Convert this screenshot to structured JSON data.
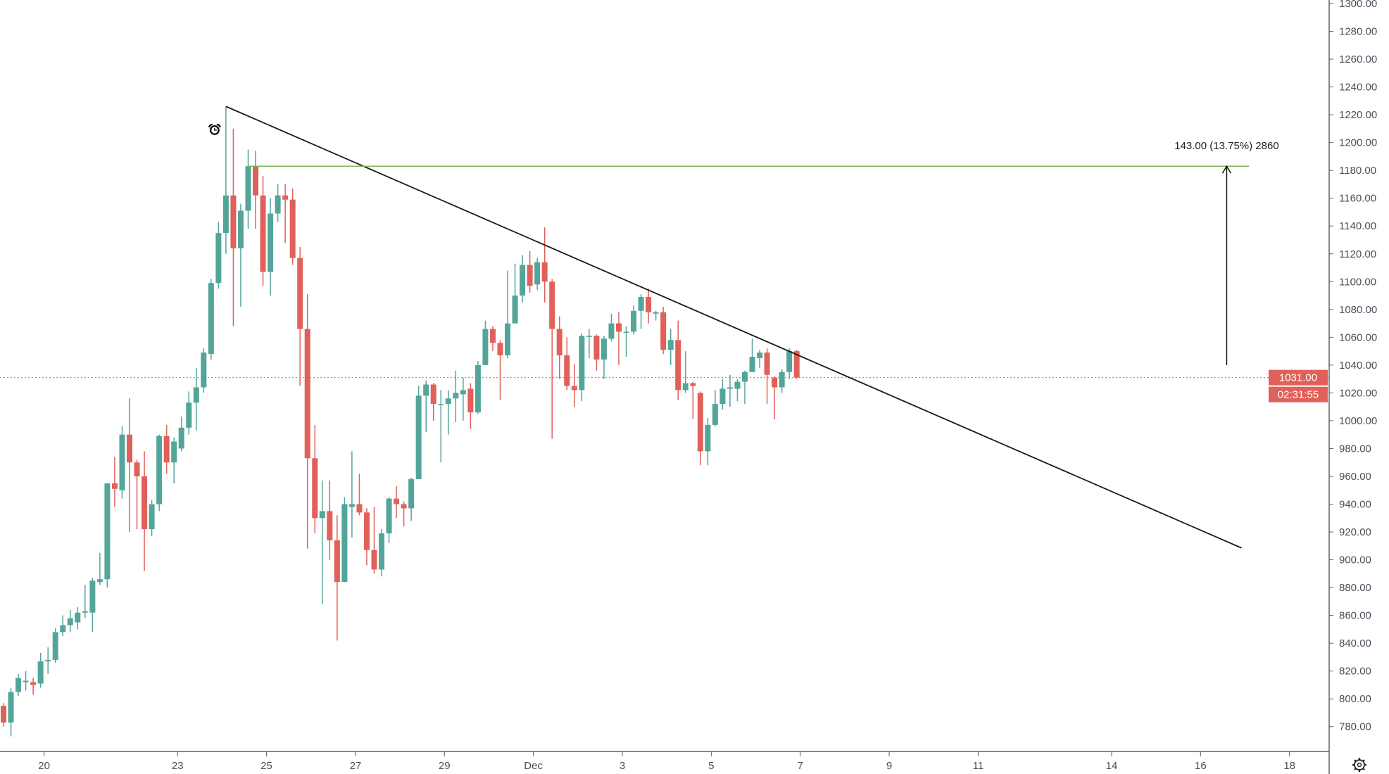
{
  "chart_data": {
    "type": "candlestick",
    "interval_note": "",
    "colors": {
      "up": "#53a59a",
      "down": "#e0605a",
      "trendline": "#1a1a1a",
      "target_line": "#7cb45a",
      "last_price": "#e0605a"
    },
    "ylim": [
      770,
      1300
    ],
    "y_ticks": [
      "780.00",
      "800.00",
      "820.00",
      "840.00",
      "860.00",
      "880.00",
      "900.00",
      "920.00",
      "940.00",
      "960.00",
      "980.00",
      "1000.00",
      "1020.00",
      "1040.00",
      "1060.00",
      "1080.00",
      "1100.00",
      "1120.00",
      "1140.00",
      "1160.00",
      "1180.00",
      "1200.00",
      "1220.00",
      "1240.00",
      "1260.00",
      "1280.00",
      "1300.00"
    ],
    "x_ticks": [
      {
        "label": "20",
        "day": 0
      },
      {
        "label": "23",
        "day": 3
      },
      {
        "label": "25",
        "day": 5
      },
      {
        "label": "27",
        "day": 7
      },
      {
        "label": "29",
        "day": 9
      },
      {
        "label": "Dec",
        "day": 11
      },
      {
        "label": "3",
        "day": 13
      },
      {
        "label": "5",
        "day": 15
      },
      {
        "label": "7",
        "day": 17
      },
      {
        "label": "9",
        "day": 19
      },
      {
        "label": "11",
        "day": 21
      },
      {
        "label": "14",
        "day": 24
      },
      {
        "label": "16",
        "day": 26
      },
      {
        "label": "18",
        "day": 28
      }
    ],
    "candles_per_day": 6,
    "first_candle_offset": -1,
    "candles": [
      [
        795,
        797,
        780,
        783
      ],
      [
        783,
        808,
        773,
        805
      ],
      [
        805,
        818,
        802,
        815
      ],
      [
        812,
        820,
        806,
        813
      ],
      [
        812,
        815,
        803,
        810
      ],
      [
        811,
        833,
        808,
        827
      ],
      [
        827,
        837,
        818,
        828
      ],
      [
        828,
        851,
        826,
        848
      ],
      [
        848,
        860,
        845,
        853
      ],
      [
        853,
        864,
        848,
        858
      ],
      [
        855,
        866,
        850,
        862
      ],
      [
        862,
        882,
        858,
        863
      ],
      [
        862,
        887,
        848,
        885
      ],
      [
        884,
        905,
        882,
        886
      ],
      [
        886,
        955,
        880,
        955
      ],
      [
        955,
        974,
        938,
        951
      ],
      [
        950,
        996,
        944,
        990
      ],
      [
        990,
        1016,
        920,
        970
      ],
      [
        970,
        972,
        922,
        960
      ],
      [
        960,
        978,
        892,
        922
      ],
      [
        922,
        943,
        917,
        940
      ],
      [
        940,
        990,
        935,
        989
      ],
      [
        989,
        997,
        962,
        970
      ],
      [
        970,
        988,
        955,
        985
      ],
      [
        980,
        1003,
        978,
        995
      ],
      [
        995,
        1021,
        990,
        1013
      ],
      [
        1013,
        1038,
        993,
        1024
      ],
      [
        1024,
        1052,
        1020,
        1049
      ],
      [
        1048,
        1102,
        1044,
        1099
      ],
      [
        1099,
        1143,
        1095,
        1135
      ],
      [
        1135,
        1226,
        1120,
        1162
      ],
      [
        1162,
        1210,
        1068,
        1124
      ],
      [
        1124,
        1156,
        1082,
        1151
      ],
      [
        1151,
        1195,
        1138,
        1183
      ],
      [
        1183,
        1194,
        1138,
        1162
      ],
      [
        1162,
        1176,
        1097,
        1107
      ],
      [
        1107,
        1160,
        1090,
        1149
      ],
      [
        1149,
        1170,
        1143,
        1162
      ],
      [
        1162,
        1170,
        1128,
        1159
      ],
      [
        1159,
        1167,
        1112,
        1117
      ],
      [
        1117,
        1125,
        1025,
        1066
      ],
      [
        1066,
        1091,
        908,
        973
      ],
      [
        973,
        997,
        919,
        930
      ],
      [
        930,
        957,
        868,
        935
      ],
      [
        935,
        957,
        900,
        914
      ],
      [
        914,
        932,
        842,
        884
      ],
      [
        884,
        945,
        884,
        940
      ],
      [
        938,
        978,
        916,
        940
      ],
      [
        940,
        962,
        932,
        934
      ],
      [
        934,
        937,
        896,
        907
      ],
      [
        907,
        938,
        890,
        893
      ],
      [
        893,
        922,
        888,
        919
      ],
      [
        919,
        945,
        912,
        944
      ],
      [
        944,
        953,
        930,
        940
      ],
      [
        940,
        942,
        924,
        937
      ],
      [
        937,
        959,
        928,
        958
      ],
      [
        958,
        1025,
        958,
        1018
      ],
      [
        1018,
        1029,
        992,
        1026
      ],
      [
        1026,
        1027,
        1000,
        1012
      ],
      [
        1012,
        1022,
        970,
        1012
      ],
      [
        1012,
        1022,
        990,
        1016
      ],
      [
        1016,
        1036,
        999,
        1020
      ],
      [
        1019,
        1031,
        1000,
        1022
      ],
      [
        1023,
        1027,
        994,
        1006
      ],
      [
        1006,
        1043,
        1005,
        1040
      ],
      [
        1040,
        1072,
        1040,
        1066
      ],
      [
        1066,
        1068,
        1050,
        1056
      ],
      [
        1056,
        1058,
        1015,
        1047
      ],
      [
        1047,
        1108,
        1045,
        1070
      ],
      [
        1070,
        1113,
        1070,
        1090
      ],
      [
        1090,
        1119,
        1085,
        1112
      ],
      [
        1112,
        1122,
        1092,
        1097
      ],
      [
        1098,
        1117,
        1094,
        1114
      ],
      [
        1114,
        1139,
        1085,
        1100
      ],
      [
        1100,
        1102,
        987,
        1066
      ],
      [
        1066,
        1075,
        1030,
        1047
      ],
      [
        1047,
        1060,
        1022,
        1025
      ],
      [
        1025,
        1041,
        1010,
        1022
      ],
      [
        1022,
        1063,
        1014,
        1061
      ],
      [
        1061,
        1066,
        1045,
        1061
      ],
      [
        1061,
        1062,
        1036,
        1044
      ],
      [
        1044,
        1061,
        1030,
        1059
      ],
      [
        1059,
        1077,
        1057,
        1070
      ],
      [
        1070,
        1078,
        1040,
        1064
      ],
      [
        1064,
        1068,
        1046,
        1064
      ],
      [
        1064,
        1083,
        1062,
        1079
      ],
      [
        1079,
        1091,
        1066,
        1089
      ],
      [
        1089,
        1095,
        1070,
        1078
      ],
      [
        1077,
        1079,
        1072,
        1078
      ],
      [
        1078,
        1082,
        1048,
        1051
      ],
      [
        1051,
        1066,
        1040,
        1058
      ],
      [
        1058,
        1072,
        1015,
        1022
      ],
      [
        1022,
        1050,
        1020,
        1027
      ],
      [
        1027,
        1028,
        1001,
        1025
      ],
      [
        1020,
        1021,
        968,
        978
      ],
      [
        978,
        1002,
        968,
        997
      ],
      [
        997,
        1022,
        996,
        1012
      ],
      [
        1012,
        1030,
        1008,
        1023
      ],
      [
        1023,
        1033,
        1010,
        1024
      ],
      [
        1023,
        1030,
        1014,
        1028
      ],
      [
        1028,
        1036,
        1012,
        1035
      ],
      [
        1035,
        1059,
        1035,
        1046
      ],
      [
        1045,
        1051,
        1038,
        1049
      ],
      [
        1049,
        1052,
        1012,
        1033
      ],
      [
        1031,
        1032,
        1001,
        1024
      ],
      [
        1024,
        1037,
        1020,
        1035
      ],
      [
        1035,
        1052,
        1030,
        1050
      ],
      [
        1050,
        1051,
        1030,
        1031
      ]
    ],
    "last_price": "1031.00",
    "countdown": "02:31:55",
    "trendline": {
      "from": {
        "candle": 30,
        "price": 1226
      },
      "to": {
        "candle": 167,
        "price": 908.5
      }
    },
    "target_line": {
      "from_candle": 33,
      "to_candle": 168,
      "price": 1183
    },
    "measure": {
      "candle": 165,
      "from_price": 1040,
      "to_price": 1183,
      "label": "143.00 (13.75%) 2860"
    },
    "alert_icon": {
      "name": "alarm-clock-icon",
      "candle": 28,
      "price": 1213
    }
  }
}
